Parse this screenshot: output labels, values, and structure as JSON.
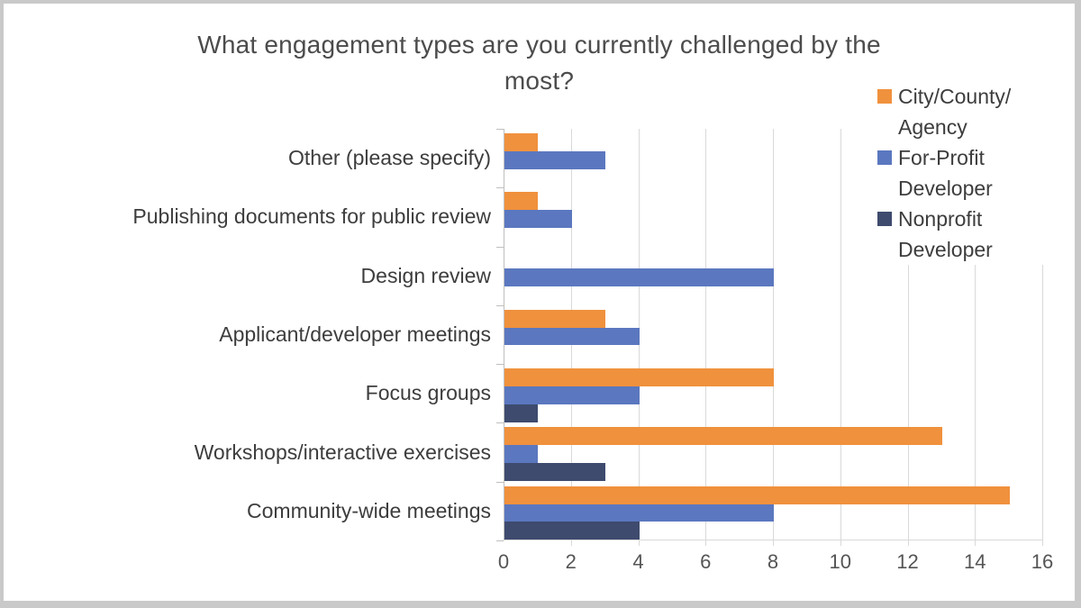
{
  "window": {
    "frame_background": "#c9c9c9",
    "panel_background": "#ffffff"
  },
  "chart_data": {
    "type": "bar",
    "orientation": "horizontal",
    "title": "What engagement types are you currently challenged by the most?",
    "title_lines": [
      "What engagement types are you currently challenged by the",
      "most?"
    ],
    "categories": [
      "Other (please specify)",
      "Publishing documents for public review",
      "Design review",
      "Applicant/developer meetings",
      "Focus groups",
      "Workshops/interactive exercises",
      "Community-wide meetings"
    ],
    "series": [
      {
        "name": "City/County/Agency",
        "legend_lines": [
          "City/County/",
          "Agency"
        ],
        "color": "#F0913D",
        "values": [
          1,
          1,
          0,
          3,
          8,
          13,
          15
        ]
      },
      {
        "name": "For-Profit Developer",
        "legend_lines": [
          "For-Profit",
          "Developer"
        ],
        "color": "#5B77BF",
        "values": [
          3,
          2,
          8,
          4,
          4,
          1,
          8
        ]
      },
      {
        "name": "Nonprofit Developer",
        "legend_lines": [
          "Nonprofit",
          "Developer"
        ],
        "color": "#3E4B6E",
        "values": [
          0,
          0,
          0,
          0,
          1,
          3,
          4
        ]
      }
    ],
    "xlabel": "",
    "ylabel": "",
    "xlim": [
      0,
      16
    ],
    "x_ticks": [
      0,
      2,
      4,
      6,
      8,
      10,
      12,
      14,
      16
    ],
    "grid": "vertical",
    "legend_position": "top-right",
    "colors": {
      "gridline": "#D9D9D9",
      "axis": "#BFBFBF",
      "title_text": "#4C4C4C",
      "category_text": "#3D3D3D",
      "tick_text": "#555555"
    }
  }
}
